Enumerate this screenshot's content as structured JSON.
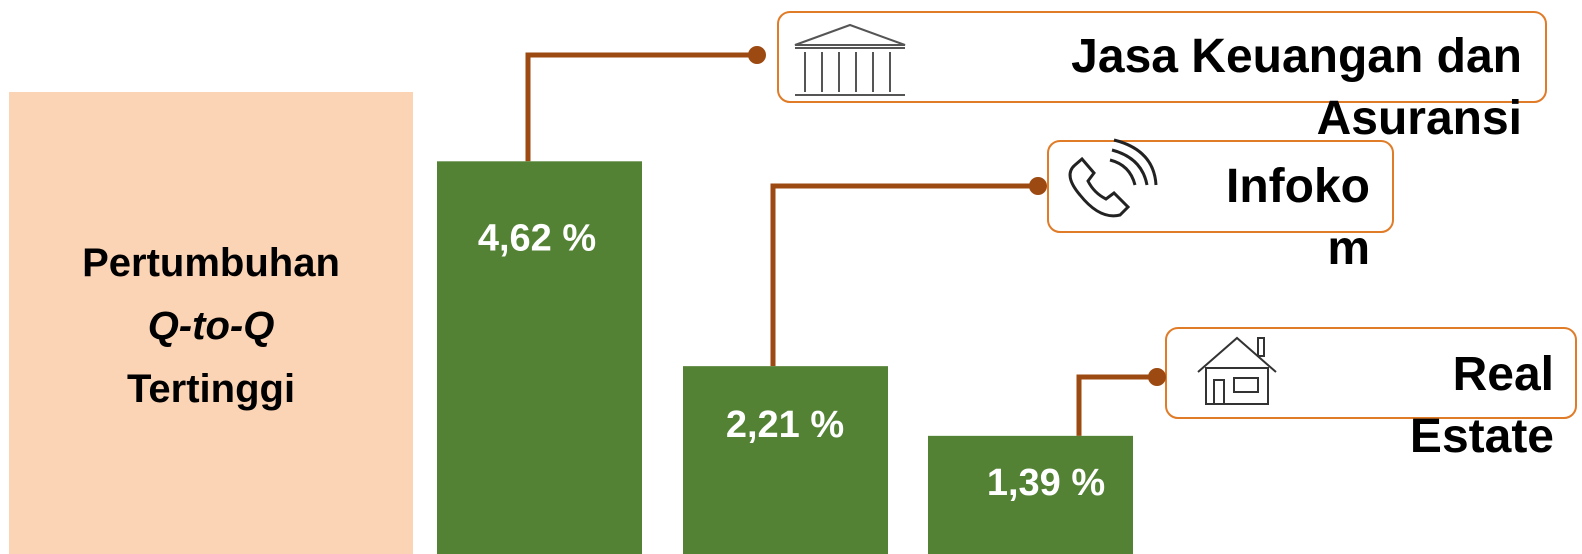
{
  "chart_data": {
    "type": "bar",
    "title": [
      "Pertumbuhan",
      "Q-to-Q",
      "Tertinggi"
    ],
    "categories": [
      "Jasa Keuangan dan Asuransi",
      "Infokom",
      "Real Estate"
    ],
    "values": [
      4.62,
      2.21,
      1.39
    ],
    "value_labels": [
      "4,62 %",
      "2,21 %",
      "1,39 %"
    ],
    "color": "#548235"
  }
}
